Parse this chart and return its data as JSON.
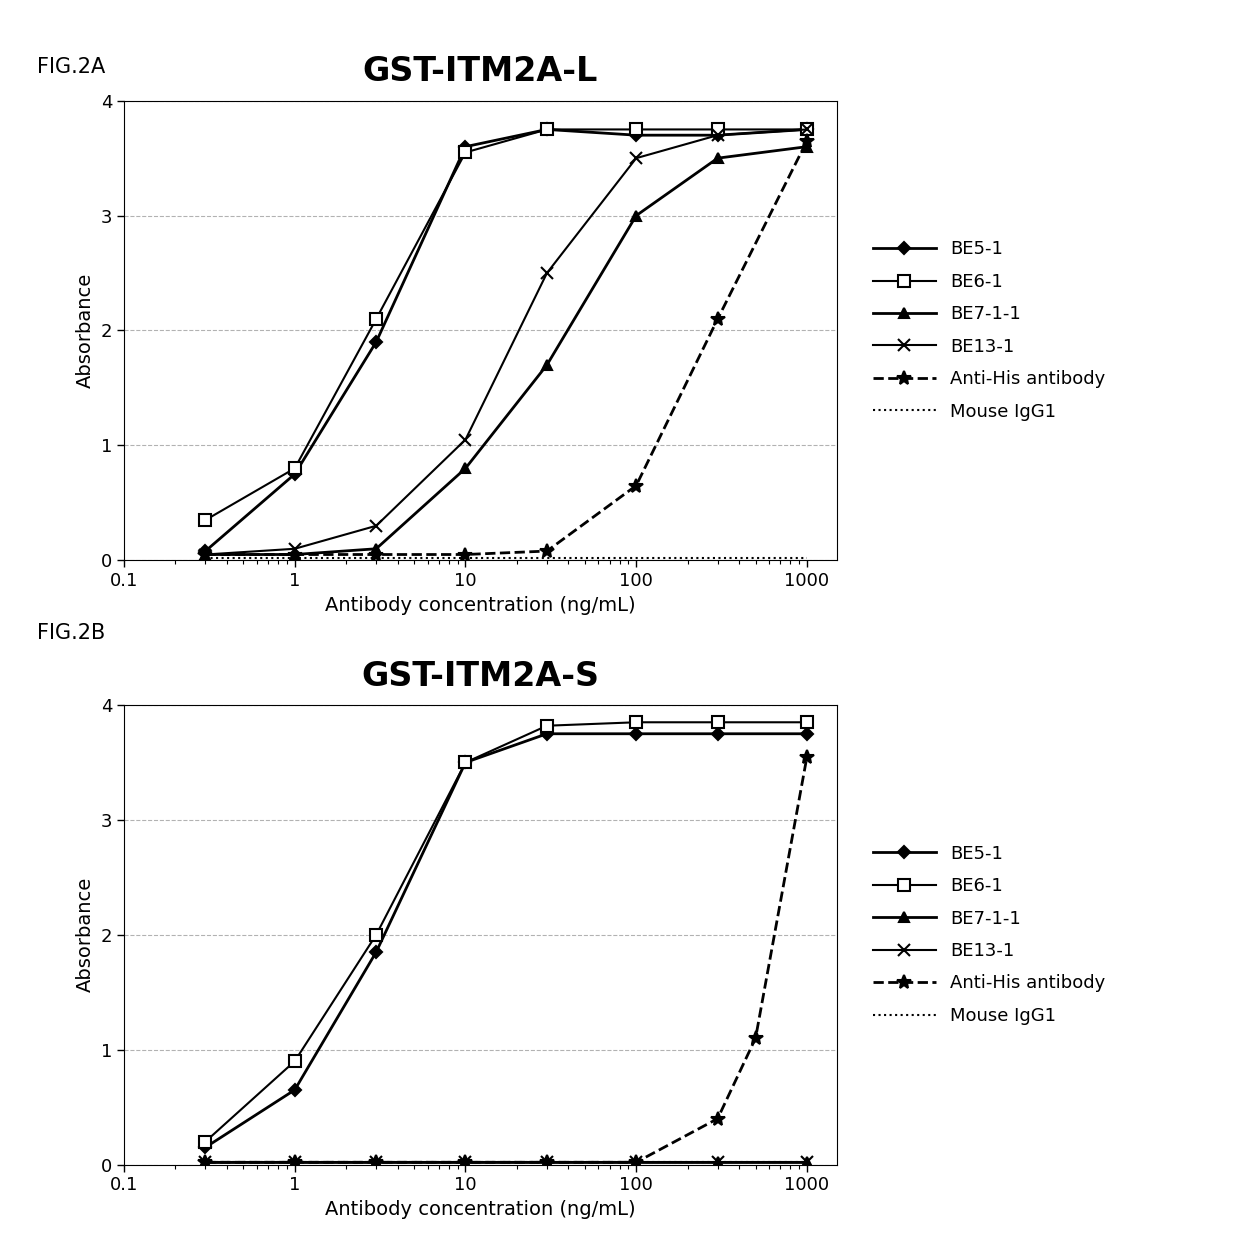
{
  "fig2a": {
    "title": "GST-ITM2A-L",
    "series": {
      "BE5-1": {
        "x": [
          0.3,
          1,
          3,
          10,
          30,
          100,
          300,
          1000
        ],
        "y": [
          0.08,
          0.75,
          1.9,
          3.6,
          3.75,
          3.7,
          3.7,
          3.75
        ],
        "linestyle": "-",
        "marker": "D",
        "markersize": 6,
        "linewidth": 2,
        "markerfacecolor": "black",
        "markeredgecolor": "black"
      },
      "BE6-1": {
        "x": [
          0.3,
          1,
          3,
          10,
          30,
          100,
          300,
          1000
        ],
        "y": [
          0.35,
          0.8,
          2.1,
          3.55,
          3.75,
          3.75,
          3.75,
          3.75
        ],
        "linestyle": "-",
        "marker": "s",
        "markersize": 8,
        "linewidth": 1.5,
        "markerfacecolor": "white",
        "markeredgecolor": "black"
      },
      "BE7-1-1": {
        "x": [
          0.3,
          1,
          3,
          10,
          30,
          100,
          300,
          1000
        ],
        "y": [
          0.05,
          0.05,
          0.1,
          0.8,
          1.7,
          3.0,
          3.5,
          3.6
        ],
        "linestyle": "-",
        "marker": "^",
        "markersize": 7,
        "linewidth": 2,
        "markerfacecolor": "black",
        "markeredgecolor": "black"
      },
      "BE13-1": {
        "x": [
          0.3,
          1,
          3,
          10,
          30,
          100,
          300,
          1000
        ],
        "y": [
          0.05,
          0.1,
          0.3,
          1.05,
          2.5,
          3.5,
          3.7,
          3.75
        ],
        "linestyle": "-",
        "marker": "x",
        "markersize": 8,
        "linewidth": 1.5,
        "markerfacecolor": "black",
        "markeredgecolor": "black"
      },
      "Anti-His antibody": {
        "x": [
          0.3,
          1,
          3,
          10,
          30,
          100,
          300,
          1000
        ],
        "y": [
          0.05,
          0.05,
          0.05,
          0.05,
          0.08,
          0.65,
          2.1,
          3.65
        ],
        "linestyle": "--",
        "marker": "*",
        "markersize": 10,
        "linewidth": 2,
        "markerfacecolor": "black",
        "markeredgecolor": "black"
      },
      "Mouse IgG1": {
        "x": [
          0.3,
          1,
          3,
          10,
          30,
          100,
          300,
          1000
        ],
        "y": [
          0.02,
          0.02,
          0.02,
          0.02,
          0.02,
          0.02,
          0.02,
          0.02
        ],
        "linestyle": ":",
        "marker": null,
        "markersize": 0,
        "linewidth": 1.5,
        "markerfacecolor": "black",
        "markeredgecolor": "black"
      }
    }
  },
  "fig2b": {
    "title": "GST-ITM2A-S",
    "series": {
      "BE5-1": {
        "x": [
          0.3,
          1,
          3,
          10,
          30,
          100,
          300,
          1000
        ],
        "y": [
          0.15,
          0.65,
          1.85,
          3.5,
          3.75,
          3.75,
          3.75,
          3.75
        ],
        "linestyle": "-",
        "marker": "D",
        "markersize": 6,
        "linewidth": 2,
        "markerfacecolor": "black",
        "markeredgecolor": "black"
      },
      "BE6-1": {
        "x": [
          0.3,
          1,
          3,
          10,
          30,
          100,
          300,
          1000
        ],
        "y": [
          0.2,
          0.9,
          2.0,
          3.5,
          3.82,
          3.85,
          3.85,
          3.85
        ],
        "linestyle": "-",
        "marker": "s",
        "markersize": 8,
        "linewidth": 1.5,
        "markerfacecolor": "white",
        "markeredgecolor": "black"
      },
      "BE7-1-1": {
        "x": [
          0.3,
          1,
          3,
          10,
          30,
          100,
          300,
          1000
        ],
        "y": [
          0.02,
          0.02,
          0.02,
          0.02,
          0.02,
          0.02,
          0.02,
          0.02
        ],
        "linestyle": "-",
        "marker": "^",
        "markersize": 7,
        "linewidth": 2,
        "markerfacecolor": "black",
        "markeredgecolor": "black"
      },
      "BE13-1": {
        "x": [
          0.3,
          1,
          3,
          10,
          30,
          100,
          300,
          1000
        ],
        "y": [
          0.02,
          0.02,
          0.02,
          0.02,
          0.02,
          0.02,
          0.02,
          0.02
        ],
        "linestyle": "-",
        "marker": "x",
        "markersize": 8,
        "linewidth": 1.5,
        "markerfacecolor": "black",
        "markeredgecolor": "black"
      },
      "Anti-His antibody": {
        "x": [
          0.3,
          1,
          3,
          10,
          30,
          100,
          300,
          500,
          1000
        ],
        "y": [
          0.02,
          0.02,
          0.02,
          0.02,
          0.02,
          0.02,
          0.4,
          1.1,
          3.55
        ],
        "linestyle": "--",
        "marker": "*",
        "markersize": 10,
        "linewidth": 2,
        "markerfacecolor": "black",
        "markeredgecolor": "black"
      },
      "Mouse IgG1": {
        "x": [
          0.3,
          1,
          3,
          10,
          30,
          100,
          300,
          1000
        ],
        "y": [
          0.02,
          0.02,
          0.02,
          0.02,
          0.02,
          0.02,
          0.02,
          0.02
        ],
        "linestyle": ":",
        "marker": null,
        "markersize": 0,
        "linewidth": 1.5,
        "markerfacecolor": "black",
        "markeredgecolor": "black"
      }
    }
  },
  "xlabel": "Antibody concentration (ng/mL)",
  "ylabel": "Absorbance",
  "ylim": [
    0,
    4
  ],
  "yticks": [
    0,
    1,
    2,
    3,
    4
  ],
  "xtick_vals": [
    0.1,
    1,
    10,
    100,
    1000
  ],
  "background_color": "#ffffff",
  "fig2a_label": "FIG.2A",
  "fig2b_label": "FIG.2B",
  "title_fontsize": 24,
  "label_fontsize": 14,
  "tick_fontsize": 13,
  "legend_fontsize": 13,
  "series_order": [
    "BE5-1",
    "BE6-1",
    "BE7-1-1",
    "BE13-1",
    "Anti-His antibody",
    "Mouse IgG1"
  ]
}
